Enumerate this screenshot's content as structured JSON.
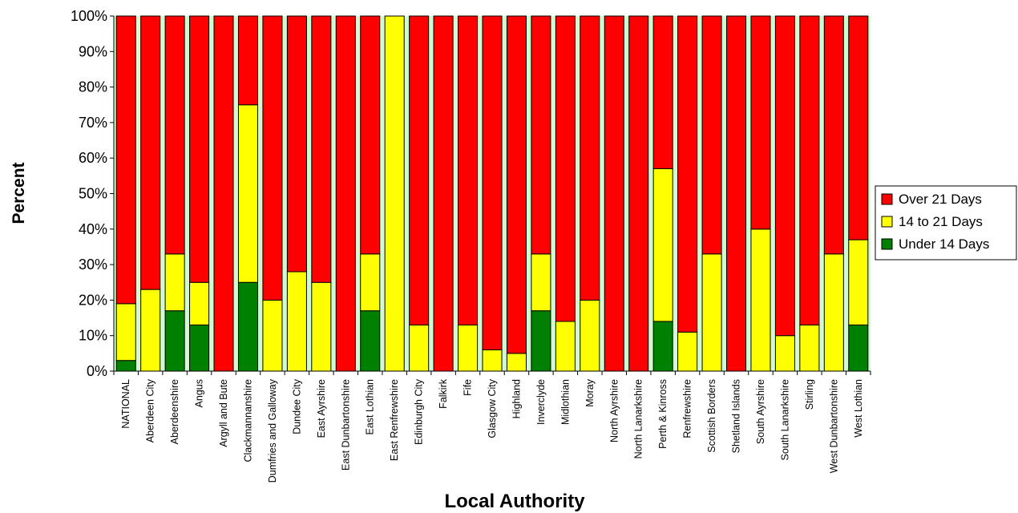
{
  "chart_data": {
    "type": "bar",
    "stacked": true,
    "percent_stacked": true,
    "xlabel": "Local Authority",
    "ylabel": "Percent",
    "ylim": [
      0,
      100
    ],
    "y_ticks": [
      "0%",
      "10%",
      "20%",
      "30%",
      "40%",
      "50%",
      "60%",
      "70%",
      "80%",
      "90%",
      "100%"
    ],
    "plot_background": "#ccffcc",
    "legend_position": "right",
    "categories": [
      "NATIONAL",
      "Aberdeen City",
      "Aberdeenshire",
      "Angus",
      "Argyll and Bute",
      "Clackmannanshire",
      "Dumfries and Galloway",
      "Dundee City",
      "East Ayrshire",
      "East Dunbartonshire",
      "East Lothian",
      "East Renfrewshire",
      "Edinburgh City",
      "Falkirk",
      "Fife",
      "Glasgow City",
      "Highland",
      "Inverclyde",
      "Midlothian",
      "Moray",
      "North Ayrshire",
      "North Lanarkshire",
      "Perth & Kinross",
      "Renfrewshire",
      "Scottish Borders",
      "Shetland Islands",
      "South Ayrshire",
      "South Lanarkshire",
      "Stirling",
      "West Dunbartonshire",
      "West Lothian"
    ],
    "series": [
      {
        "name": "Under 14 Days",
        "color": "#008000",
        "values": [
          3,
          0,
          17,
          13,
          0,
          25,
          0,
          0,
          0,
          0,
          17,
          0,
          0,
          0,
          0,
          0,
          0,
          17,
          0,
          0,
          0,
          0,
          14,
          0,
          0,
          0,
          0,
          0,
          0,
          0,
          13
        ]
      },
      {
        "name": "14 to 21 Days",
        "color": "#ffff00",
        "values": [
          16,
          23,
          16,
          12,
          0,
          50,
          20,
          28,
          25,
          0,
          16,
          100,
          13,
          0,
          13,
          6,
          5,
          16,
          14,
          20,
          0,
          0,
          43,
          11,
          33,
          0,
          40,
          10,
          13,
          33,
          24
        ]
      },
      {
        "name": "Over 21 Days",
        "color": "#ff0000",
        "values": [
          81,
          77,
          67,
          75,
          100,
          25,
          80,
          72,
          75,
          100,
          67,
          0,
          87,
          100,
          87,
          94,
          95,
          67,
          86,
          80,
          100,
          100,
          43,
          89,
          67,
          100,
          60,
          90,
          87,
          67,
          63
        ]
      }
    ],
    "legend": [
      "Over 21 Days",
      "14 to 21 Days",
      "Under 14 Days"
    ]
  }
}
